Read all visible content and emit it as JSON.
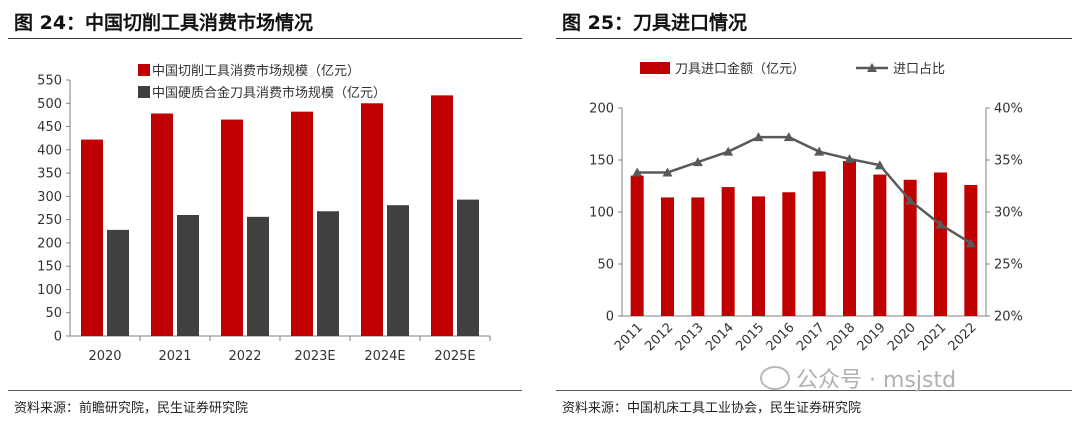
{
  "left_panel": {
    "title": "图 24：中国切削工具消费市场情况",
    "source": "资料来源：前瞻研究院，民生证券研究院"
  },
  "right_panel": {
    "title": "图 25：刀具进口情况",
    "source": "资料来源：中国机床工具工业协会，民生证券研究院"
  },
  "watermark": "公众号 · msjstd",
  "colors": {
    "red": "#c00000",
    "gray": "#404040",
    "line": "#595959"
  },
  "chart_data": [
    {
      "type": "bar",
      "categories": [
        "2020",
        "2021",
        "2022",
        "2023E",
        "2024E",
        "2025E"
      ],
      "series": [
        {
          "name": "中国切削工具消费市场规模（亿元）",
          "values": [
            422,
            478,
            465,
            482,
            500,
            517
          ]
        },
        {
          "name": "中国硬质合金刀具消费市场规模（亿元）",
          "values": [
            228,
            260,
            256,
            268,
            281,
            293
          ]
        }
      ],
      "yticks": [
        "0",
        "50",
        "100",
        "150",
        "200",
        "250",
        "300",
        "350",
        "400",
        "450",
        "500",
        "550"
      ],
      "ylim": [
        0,
        550
      ],
      "legend": "top-left"
    },
    {
      "type": "bar+line",
      "categories": [
        "2011",
        "2012",
        "2013",
        "2014",
        "2015",
        "2016",
        "2017",
        "2018",
        "2019",
        "2020",
        "2021",
        "2022"
      ],
      "series": [
        {
          "name": "刀具进口金额（亿元）",
          "type": "bar",
          "axis": "left",
          "values": [
            135,
            114,
            114,
            124,
            115,
            119,
            139,
            149,
            136,
            131,
            138,
            126
          ]
        },
        {
          "name": "进口占比",
          "type": "line",
          "axis": "right",
          "values": [
            33.8,
            33.8,
            34.8,
            35.8,
            37.2,
            37.2,
            35.8,
            35.1,
            34.5,
            31.1,
            28.8,
            27.0
          ]
        }
      ],
      "yticks_left": [
        "0",
        "50",
        "100",
        "150",
        "200"
      ],
      "ylim_left": [
        0,
        200
      ],
      "yticks_right": [
        "20%",
        "25%",
        "30%",
        "35%",
        "40%"
      ],
      "ylim_right": [
        20,
        40
      ],
      "legend": "top"
    }
  ]
}
